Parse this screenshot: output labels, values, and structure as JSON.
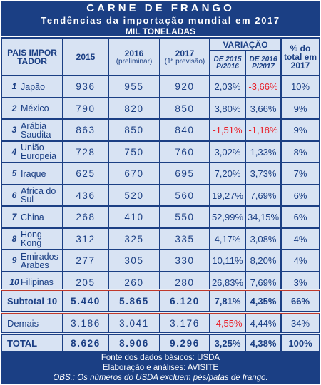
{
  "title": "CARNE DE FRANGO",
  "subtitle": "Tendências da importação mundial em 2017",
  "unit": "MIL TONELADAS",
  "headers": {
    "pais": "PAIS IMPOR TADOR",
    "y2015": "2015",
    "y2016": "2016",
    "y2016_note": "(preliminar)",
    "y2017": "2017",
    "y2017_note": "(1ª previsão)",
    "variacao": "VARIAÇÃO",
    "var1": "DE 2015 P/2016",
    "var2": "DE 2016 P/2017",
    "share": "% do total em 2017"
  },
  "rows": [
    {
      "rank": "1",
      "country": "Japão",
      "v2015": "936",
      "v2016": "955",
      "v2017": "920",
      "var1": "2,03%",
      "var2": "-3,66%",
      "share": "10%"
    },
    {
      "rank": "2",
      "country": "México",
      "v2015": "790",
      "v2016": "820",
      "v2017": "850",
      "var1": "3,80%",
      "var2": "3,66%",
      "share": "9%"
    },
    {
      "rank": "3",
      "country": "Arábia Saudita",
      "v2015": "863",
      "v2016": "850",
      "v2017": "840",
      "var1": "-1,51%",
      "var2": "-1,18%",
      "share": "9%"
    },
    {
      "rank": "4",
      "country": "União Europeia",
      "v2015": "728",
      "v2016": "750",
      "v2017": "760",
      "var1": "3,02%",
      "var2": "1,33%",
      "share": "8%"
    },
    {
      "rank": "5",
      "country": "Iraque",
      "v2015": "625",
      "v2016": "670",
      "v2017": "695",
      "var1": "7,20%",
      "var2": "3,73%",
      "share": "7%"
    },
    {
      "rank": "6",
      "country": "Africa do Sul",
      "v2015": "436",
      "v2016": "520",
      "v2017": "560",
      "var1": "19,27%",
      "var2": "7,69%",
      "share": "6%"
    },
    {
      "rank": "7",
      "country": "China",
      "v2015": "268",
      "v2016": "410",
      "v2017": "550",
      "var1": "52,99%",
      "var2": "34,15%",
      "share": "6%"
    },
    {
      "rank": "8",
      "country": "Hong Kong",
      "v2015": "312",
      "v2016": "325",
      "v2017": "335",
      "var1": "4,17%",
      "var2": "3,08%",
      "share": "4%"
    },
    {
      "rank": "9",
      "country": "Emirados Arabes",
      "v2015": "277",
      "v2016": "305",
      "v2017": "330",
      "var1": "10,11%",
      "var2": "8,20%",
      "share": "4%"
    },
    {
      "rank": "10",
      "country": "Filipinas",
      "v2015": "205",
      "v2016": "260",
      "v2017": "280",
      "var1": "26,83%",
      "var2": "7,69%",
      "share": "3%"
    }
  ],
  "subtotal": {
    "label": "Subtotal 10",
    "v2015": "5.440",
    "v2016": "5.865",
    "v2017": "6.120",
    "var1": "7,81%",
    "var2": "4,35%",
    "share": "66%"
  },
  "demais": {
    "label": "Demais",
    "v2015": "3.186",
    "v2016": "3.041",
    "v2017": "3.176",
    "var1": "-4,55%",
    "var2": "4,44%",
    "share": "34%"
  },
  "total": {
    "label": "TOTAL",
    "v2015": "8.626",
    "v2016": "8.906",
    "v2017": "9.296",
    "var1": "3,25%",
    "var2": "4,38%",
    "share": "100%"
  },
  "footer": {
    "line1": "Fonte dos dados básicos: USDA",
    "line2": "Elaboração e análises: AVISITE",
    "line3": "OBS.: Os números do USDA excluem pés/patas de frango."
  },
  "colors": {
    "frame": "#1b3f84",
    "cell": "#d8e3f3",
    "text": "#1b3f84",
    "negative": "#e8202a",
    "separator": "#c0392b"
  }
}
